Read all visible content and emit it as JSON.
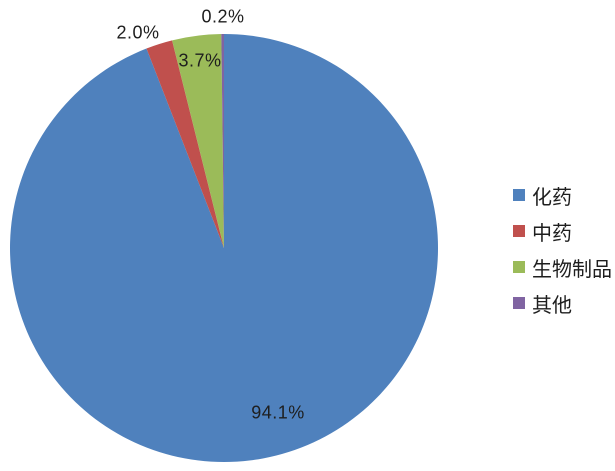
{
  "chart_data": {
    "type": "pie",
    "title": "",
    "categories": [
      "化药",
      "中药",
      "生物制品",
      "其他"
    ],
    "values": [
      94.1,
      2.0,
      3.7,
      0.2
    ],
    "value_labels": [
      "94.1%",
      "2.0%",
      "3.7%",
      "0.2%"
    ],
    "colors": [
      "#4F81BD",
      "#C0504D",
      "#9BBB59",
      "#8064A2"
    ],
    "start_angle_deg": 0,
    "direction": "clockwise",
    "legend_position": "right",
    "background": "#ffffff"
  },
  "legend": {
    "items": [
      {
        "label": "化药",
        "color": "#4F81BD"
      },
      {
        "label": "中药",
        "color": "#C0504D"
      },
      {
        "label": "生物制品",
        "color": "#9BBB59"
      },
      {
        "label": "其他",
        "color": "#8064A2"
      }
    ]
  }
}
